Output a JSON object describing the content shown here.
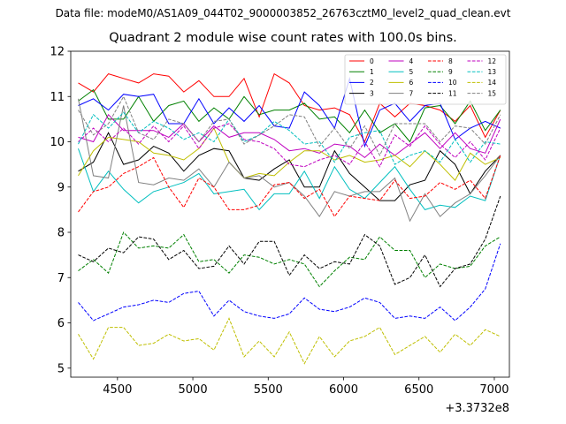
{
  "header": {
    "datafile": "Data file: modeM0/AS1A09_044T02_9000003852_26763cztM0_level2_quad_clean.evt"
  },
  "chart_data": {
    "type": "line",
    "title": "Quadrant 2 module wise count rates with 100.0s bins.",
    "xlabel": "",
    "ylabel": "",
    "offset_label": "+3.3732e8",
    "xlim": [
      4190,
      7100
    ],
    "ylim": [
      4.8,
      12.0
    ],
    "xticks": [
      4500,
      5000,
      5500,
      6000,
      6500,
      7000
    ],
    "yticks": [
      5,
      6,
      7,
      8,
      9,
      10,
      11,
      12
    ],
    "legend_position": "top-right",
    "x": [
      4240,
      4340,
      4440,
      4540,
      4640,
      4740,
      4840,
      4940,
      5040,
      5140,
      5240,
      5340,
      5440,
      5540,
      5640,
      5740,
      5840,
      5940,
      6040,
      6140,
      6240,
      6340,
      6440,
      6540,
      6640,
      6740,
      6840,
      6940,
      7040
    ],
    "series": [
      {
        "name": "0",
        "color": "#ff0000",
        "dash": "solid",
        "values": [
          11.3,
          11.1,
          11.5,
          11.4,
          11.3,
          11.5,
          11.45,
          11.1,
          11.35,
          11.0,
          11.0,
          11.4,
          10.55,
          11.5,
          11.3,
          10.8,
          10.7,
          10.75,
          10.6,
          10.0,
          10.85,
          10.55,
          10.85,
          10.8,
          10.7,
          10.45,
          10.8,
          10.1,
          10.7
        ]
      },
      {
        "name": "1",
        "color": "#008000",
        "dash": "solid",
        "values": [
          10.9,
          11.15,
          10.5,
          10.5,
          11.0,
          10.45,
          10.8,
          10.9,
          10.45,
          10.75,
          10.5,
          11.0,
          10.6,
          10.7,
          10.7,
          10.85,
          10.5,
          10.55,
          10.2,
          10.7,
          10.2,
          10.4,
          10.0,
          10.75,
          10.8,
          10.4,
          10.9,
          10.25,
          10.7
        ]
      },
      {
        "name": "2",
        "color": "#0000ff",
        "dash": "solid",
        "values": [
          10.8,
          10.95,
          10.7,
          11.05,
          11.0,
          11.05,
          10.4,
          10.4,
          10.95,
          10.4,
          10.75,
          10.45,
          10.8,
          10.35,
          10.3,
          11.1,
          10.8,
          10.3,
          11.4,
          9.9,
          10.7,
          10.85,
          10.45,
          10.8,
          10.85,
          10.05,
          10.3,
          10.45,
          10.3
        ]
      },
      {
        "name": "3",
        "color": "#000000",
        "dash": "solid",
        "values": [
          9.35,
          9.55,
          10.2,
          9.5,
          9.6,
          9.9,
          9.75,
          9.35,
          9.7,
          9.85,
          9.8,
          9.2,
          9.15,
          9.4,
          9.6,
          9.0,
          9.0,
          9.8,
          9.3,
          9.0,
          8.7,
          8.7,
          9.05,
          9.15,
          9.8,
          9.5,
          8.85,
          9.35,
          9.7
        ]
      },
      {
        "name": "4",
        "color": "#bf00bf",
        "dash": "solid",
        "values": [
          10.1,
          10.0,
          10.6,
          10.25,
          10.25,
          10.25,
          10.1,
          10.4,
          10.0,
          10.35,
          10.1,
          10.2,
          10.2,
          10.05,
          9.8,
          9.85,
          9.75,
          9.95,
          9.9,
          9.65,
          9.95,
          9.7,
          9.95,
          10.2,
          9.85,
          10.2,
          9.85,
          9.75,
          10.5
        ]
      },
      {
        "name": "5",
        "color": "#00bfbf",
        "dash": "solid",
        "values": [
          9.85,
          8.9,
          9.35,
          8.95,
          8.65,
          8.9,
          9.0,
          9.1,
          9.3,
          8.85,
          8.9,
          8.95,
          8.5,
          8.85,
          8.85,
          9.35,
          8.75,
          9.45,
          8.95,
          8.75,
          9.1,
          9.45,
          8.95,
          8.5,
          8.6,
          8.55,
          8.8,
          8.7,
          9.7
        ]
      },
      {
        "name": "6",
        "color": "#bfbf00",
        "dash": "solid",
        "values": [
          9.25,
          9.8,
          10.1,
          10.05,
          10.0,
          9.75,
          9.7,
          9.6,
          9.85,
          10.3,
          9.55,
          9.2,
          9.3,
          9.25,
          9.55,
          9.8,
          9.8,
          9.6,
          9.7,
          9.55,
          9.6,
          9.7,
          9.45,
          9.8,
          9.5,
          9.15,
          9.75,
          9.5,
          9.65
        ]
      },
      {
        "name": "7",
        "color": "#808080",
        "dash": "solid",
        "values": [
          10.95,
          9.25,
          9.2,
          10.8,
          9.1,
          9.05,
          9.2,
          9.15,
          9.4,
          9.0,
          9.55,
          9.2,
          9.25,
          9.0,
          9.1,
          8.8,
          8.35,
          8.9,
          8.8,
          8.9,
          8.9,
          9.2,
          8.25,
          8.85,
          8.35,
          8.65,
          8.85,
          9.25,
          9.7
        ]
      },
      {
        "name": "8",
        "color": "#ff0000",
        "dash": "dashed",
        "values": [
          8.45,
          8.9,
          9.0,
          9.3,
          9.45,
          9.65,
          9.0,
          8.55,
          9.2,
          9.0,
          8.5,
          8.5,
          8.6,
          9.05,
          9.1,
          8.75,
          8.95,
          8.35,
          8.8,
          8.75,
          8.7,
          9.15,
          8.75,
          8.8,
          9.1,
          8.95,
          9.15,
          8.75,
          9.7
        ]
      },
      {
        "name": "9",
        "color": "#008000",
        "dash": "dashed",
        "values": [
          7.15,
          7.4,
          7.1,
          8.0,
          7.65,
          7.7,
          7.65,
          7.95,
          7.35,
          7.4,
          7.1,
          7.5,
          7.45,
          7.3,
          7.4,
          7.3,
          6.8,
          7.15,
          7.45,
          7.4,
          7.9,
          7.6,
          7.6,
          7.0,
          7.3,
          7.2,
          7.25,
          7.7,
          7.9
        ]
      },
      {
        "name": "10",
        "color": "#0000ff",
        "dash": "dashed",
        "values": [
          6.45,
          6.05,
          6.2,
          6.35,
          6.4,
          6.5,
          6.45,
          6.65,
          6.7,
          6.15,
          6.5,
          6.25,
          6.15,
          6.1,
          6.2,
          6.55,
          6.3,
          6.25,
          6.35,
          6.55,
          6.45,
          6.1,
          6.15,
          6.1,
          6.35,
          6.05,
          6.35,
          6.75,
          7.75
        ]
      },
      {
        "name": "11",
        "color": "#000000",
        "dash": "dashed",
        "values": [
          7.5,
          7.35,
          7.65,
          7.55,
          7.9,
          7.85,
          7.4,
          7.6,
          7.2,
          7.25,
          7.7,
          7.3,
          7.8,
          7.8,
          7.05,
          7.5,
          7.2,
          7.35,
          7.3,
          7.95,
          7.7,
          6.85,
          7.0,
          7.5,
          6.8,
          7.2,
          7.3,
          7.85,
          8.8
        ]
      },
      {
        "name": "12",
        "color": "#bf00bf",
        "dash": "dashed",
        "values": [
          10.0,
          10.3,
          10.0,
          10.3,
          9.95,
          10.35,
          10.0,
          10.35,
          9.85,
          10.3,
          10.4,
          10.05,
          10.0,
          9.85,
          9.5,
          9.45,
          9.6,
          9.7,
          9.5,
          10.0,
          9.45,
          10.15,
          9.9,
          10.35,
          9.95,
          9.65,
          10.0,
          9.6,
          10.3
        ]
      },
      {
        "name": "13",
        "color": "#00bfbf",
        "dash": "dashed",
        "values": [
          9.95,
          10.6,
          10.3,
          10.65,
          10.2,
          10.45,
          10.3,
          10.05,
          10.2,
          10.0,
          10.5,
          10.0,
          10.15,
          10.45,
          10.25,
          9.95,
          10.0,
          9.55,
          10.1,
          10.2,
          10.25,
          9.5,
          9.7,
          9.8,
          9.55,
          10.05,
          9.55,
          10.0,
          9.95
        ]
      },
      {
        "name": "14",
        "color": "#bfbf00",
        "dash": "dashed",
        "values": [
          5.75,
          5.2,
          5.9,
          5.9,
          5.5,
          5.55,
          5.75,
          5.6,
          5.65,
          5.4,
          6.1,
          5.25,
          5.6,
          5.25,
          5.8,
          5.1,
          5.7,
          5.25,
          5.6,
          5.7,
          5.9,
          5.3,
          5.5,
          5.7,
          5.35,
          5.75,
          5.5,
          5.85,
          5.7
        ]
      },
      {
        "name": "15",
        "color": "#808080",
        "dash": "dashed",
        "values": [
          10.7,
          10.15,
          10.4,
          11.0,
          10.2,
          10.05,
          10.5,
          10.4,
          10.0,
          10.45,
          10.5,
          9.95,
          10.15,
          10.35,
          10.6,
          10.55,
          9.9,
          10.3,
          9.85,
          10.35,
          9.7,
          10.4,
          10.4,
          10.4,
          10.0,
          10.35,
          10.3,
          9.95,
          10.6
        ]
      }
    ]
  }
}
